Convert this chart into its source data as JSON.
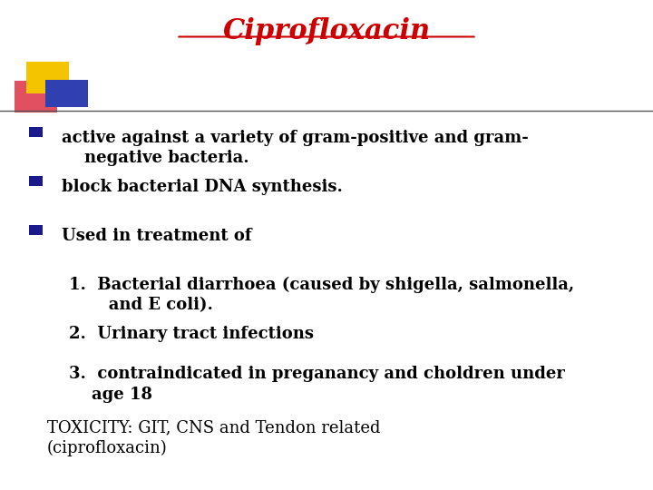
{
  "title": "Ciprofloxacin",
  "title_color": "#cc0000",
  "title_fontsize": 22,
  "bg_color": "#ffffff",
  "bullet_color": "#1a1a8c",
  "text_color": "#000000",
  "bullets": [
    "active against a variety of gram-positive and gram-\n    negative bacteria.",
    "block bacterial DNA synthesis.",
    "Used in treatment of"
  ],
  "sub_items": [
    "1.  Bacterial diarrhoea (caused by shigella, salmonella,\n       and E coli).",
    "2.  Urinary tract infections",
    "3.  contraindicated in preganancy and choldren under\n    age 18"
  ],
  "footer": "TOXICITY: GIT, CNS and Tendon related\n(ciprofloxacin)",
  "line_color": "#555555",
  "sq_yellow": "#f5c400",
  "sq_pink": "#e05060",
  "sq_blue": "#3040b0"
}
